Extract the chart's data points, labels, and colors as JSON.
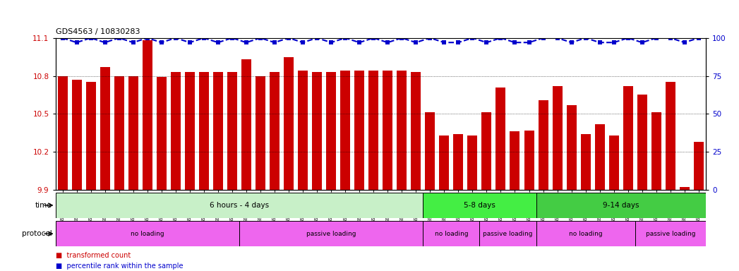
{
  "title": "GDS4563 / 10830283",
  "categories": [
    "GSM930471",
    "GSM930472",
    "GSM930473",
    "GSM930474",
    "GSM930475",
    "GSM930476",
    "GSM930477",
    "GSM930478",
    "GSM930479",
    "GSM930480",
    "GSM930481",
    "GSM930482",
    "GSM930483",
    "GSM930494",
    "GSM930495",
    "GSM930496",
    "GSM930497",
    "GSM930498",
    "GSM930499",
    "GSM930500",
    "GSM930501",
    "GSM930502",
    "GSM930503",
    "GSM930504",
    "GSM930505",
    "GSM930506",
    "GSM930484",
    "GSM930485",
    "GSM930486",
    "GSM930487",
    "GSM930507",
    "GSM930508",
    "GSM930509",
    "GSM930510",
    "GSM930488",
    "GSM930489",
    "GSM930490",
    "GSM930491",
    "GSM930492",
    "GSM930493",
    "GSM930511",
    "GSM930512",
    "GSM930513",
    "GSM930514",
    "GSM930515",
    "GSM930516"
  ],
  "bar_values": [
    10.8,
    10.77,
    10.75,
    10.87,
    10.8,
    10.8,
    11.08,
    10.79,
    10.83,
    10.83,
    10.83,
    10.83,
    10.83,
    10.93,
    10.8,
    10.83,
    10.95,
    10.84,
    10.83,
    10.83,
    10.84,
    10.84,
    10.84,
    10.84,
    10.84,
    10.83,
    10.51,
    10.33,
    10.34,
    10.33,
    10.51,
    10.71,
    10.36,
    10.37,
    10.61,
    10.72,
    10.57,
    10.34,
    10.42,
    10.33,
    10.72,
    10.65,
    10.51,
    10.75,
    9.92,
    10.28
  ],
  "percentile_values": [
    100,
    97,
    100,
    97,
    100,
    97,
    100,
    97,
    100,
    97,
    100,
    97,
    100,
    97,
    100,
    97,
    100,
    97,
    100,
    97,
    100,
    97,
    100,
    97,
    100,
    97,
    100,
    97,
    97,
    100,
    97,
    100,
    97,
    97,
    100,
    100,
    97,
    100,
    97,
    97,
    100,
    97,
    100,
    100,
    97,
    100
  ],
  "ylim_left": [
    9.9,
    11.1
  ],
  "ylim_right": [
    0,
    100
  ],
  "yticks_left": [
    9.9,
    10.2,
    10.5,
    10.8,
    11.1
  ],
  "yticks_right": [
    0,
    25,
    50,
    75,
    100
  ],
  "bar_color": "#cc0000",
  "percentile_color": "#0000cc",
  "bg_color": "#ffffff",
  "axbg_color": "#ffffff",
  "time_groups": [
    {
      "label": "6 hours - 4 days",
      "start": 0,
      "end": 26,
      "color": "#c8f0c8"
    },
    {
      "label": "5-8 days",
      "start": 26,
      "end": 34,
      "color": "#44ee44"
    },
    {
      "label": "9-14 days",
      "start": 34,
      "end": 46,
      "color": "#44cc44"
    }
  ],
  "time_boundaries": [
    0,
    26,
    34,
    46
  ],
  "protocol_boundaries": [
    0,
    13,
    26,
    30,
    34,
    41,
    46
  ],
  "protocol_labels": [
    "no loading",
    "passive loading",
    "no loading",
    "passive loading",
    "no loading",
    "passive loading"
  ],
  "protocol_color": "#ee66ee"
}
